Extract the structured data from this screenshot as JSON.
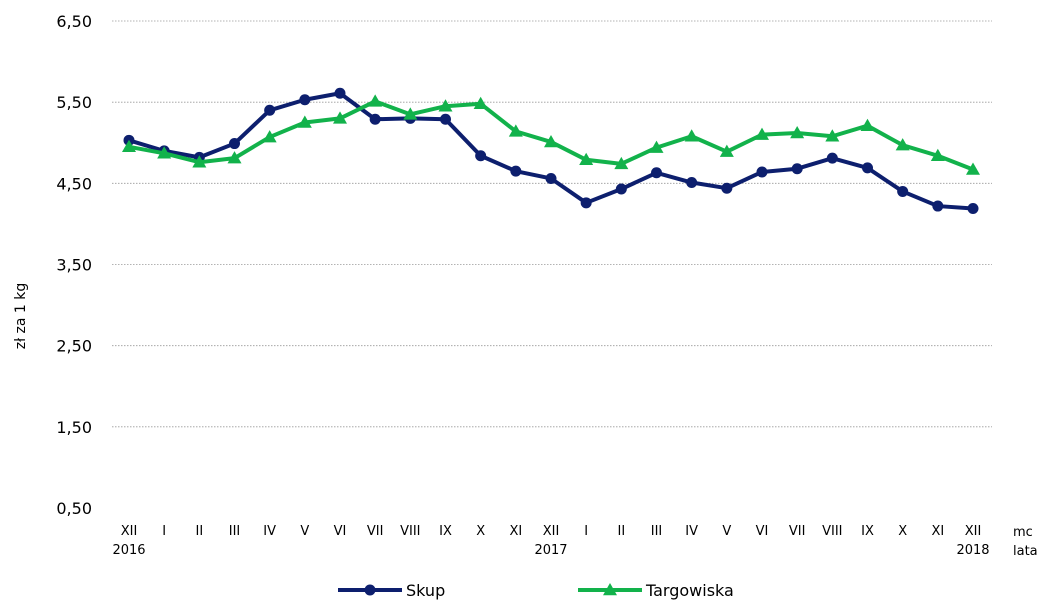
{
  "chart_data": {
    "type": "line",
    "ylabel": "zł za 1 kg",
    "x_unit_label": "mc",
    "x_year_label": "lata",
    "ylim": [
      0.5,
      6.5
    ],
    "yticks": [
      "0,50",
      "1,50",
      "2,50",
      "3,50",
      "4,50",
      "5,50",
      "6,50"
    ],
    "ytick_values": [
      0.5,
      1.5,
      2.5,
      3.5,
      4.5,
      5.5,
      6.5
    ],
    "grid": true,
    "legend_position": "bottom",
    "categories": [
      "XII",
      "I",
      "II",
      "III",
      "IV",
      "V",
      "VI",
      "VII",
      "VIII",
      "IX",
      "X",
      "XI",
      "XII",
      "I",
      "II",
      "III",
      "IV",
      "V",
      "VI",
      "VII",
      "VIII",
      "IX",
      "X",
      "XI",
      "XII"
    ],
    "year_labels": [
      {
        "index": 0,
        "label": "2016"
      },
      {
        "index": 12,
        "label": "2017"
      },
      {
        "index": 24,
        "label": "2018"
      }
    ],
    "series": [
      {
        "name": "Skup",
        "color": "#0d1f6e",
        "marker": "circle",
        "values": [
          5.03,
          4.9,
          4.82,
          4.99,
          5.4,
          5.53,
          5.61,
          5.29,
          5.3,
          5.29,
          4.84,
          4.65,
          4.56,
          4.26,
          4.43,
          4.63,
          4.51,
          4.44,
          4.64,
          4.68,
          4.81,
          4.69,
          4.4,
          4.22,
          4.19
        ]
      },
      {
        "name": "Targowiska",
        "color": "#12b24b",
        "marker": "triangle",
        "values": [
          4.95,
          4.87,
          4.76,
          4.81,
          5.07,
          5.25,
          5.3,
          5.51,
          5.35,
          5.45,
          5.48,
          5.14,
          5.01,
          4.79,
          4.74,
          4.94,
          5.08,
          4.89,
          5.1,
          5.12,
          5.08,
          5.21,
          4.97,
          4.84,
          4.67
        ]
      }
    ]
  }
}
